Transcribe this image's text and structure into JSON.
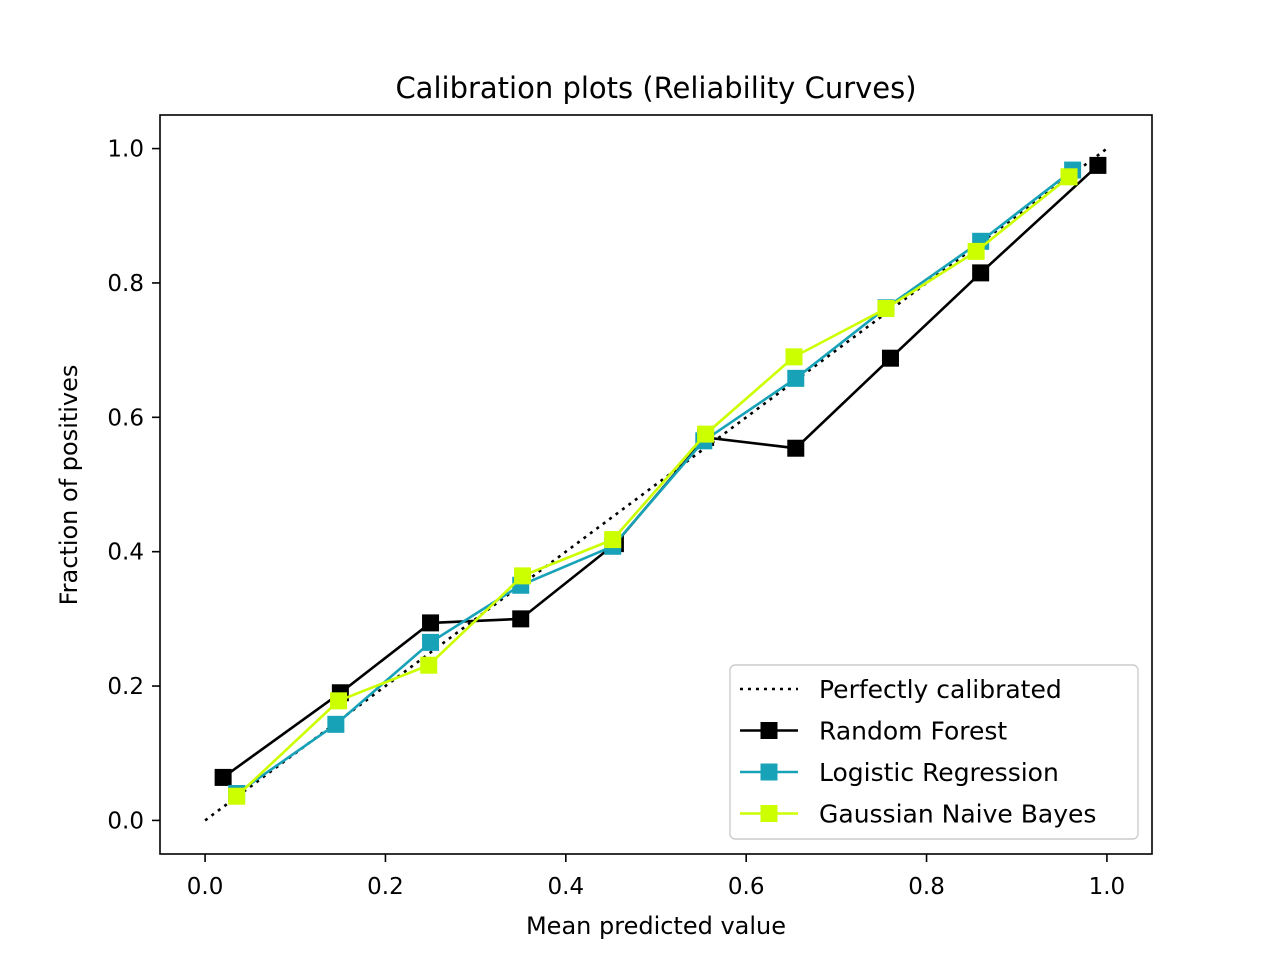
{
  "chart_data": {
    "type": "line",
    "title": "Calibration plots (Reliability Curves)",
    "xlabel": "Mean predicted value",
    "ylabel": "Fraction of positives",
    "xlim": [
      -0.05,
      1.05
    ],
    "ylim": [
      -0.05,
      1.05
    ],
    "xticks": [
      "0.0",
      "0.2",
      "0.4",
      "0.6",
      "0.8",
      "1.0"
    ],
    "yticks": [
      "0.0",
      "0.2",
      "0.4",
      "0.6",
      "0.8",
      "1.0"
    ],
    "xtick_values": [
      0.0,
      0.2,
      0.4,
      0.6,
      0.8,
      1.0
    ],
    "ytick_values": [
      0.0,
      0.2,
      0.4,
      0.6,
      0.8,
      1.0
    ],
    "grid": false,
    "legend_position": "lower-right",
    "series": [
      {
        "name": "Perfectly calibrated",
        "color": "#000000",
        "style": "dotted",
        "marker": "none",
        "x": [
          0.0,
          1.0
        ],
        "y": [
          0.0,
          1.0
        ]
      },
      {
        "name": "Random Forest",
        "color": "#000000",
        "style": "solid",
        "marker": "square",
        "x": [
          0.02,
          0.15,
          0.25,
          0.35,
          0.455,
          0.555,
          0.655,
          0.76,
          0.86,
          0.99
        ],
        "y": [
          0.064,
          0.19,
          0.294,
          0.3,
          0.412,
          0.57,
          0.554,
          0.688,
          0.815,
          0.975
        ]
      },
      {
        "name": "Logistic Regression",
        "color": "#17a2b8",
        "style": "solid",
        "marker": "square",
        "x": [
          0.035,
          0.145,
          0.25,
          0.35,
          0.452,
          0.553,
          0.655,
          0.755,
          0.86,
          0.962
        ],
        "y": [
          0.04,
          0.143,
          0.265,
          0.35,
          0.408,
          0.565,
          0.658,
          0.763,
          0.862,
          0.968
        ]
      },
      {
        "name": "Gaussian Naive Bayes",
        "color": "#ccff00",
        "style": "solid",
        "marker": "square",
        "x": [
          0.035,
          0.148,
          0.248,
          0.352,
          0.452,
          0.555,
          0.653,
          0.755,
          0.855,
          0.958
        ],
        "y": [
          0.036,
          0.178,
          0.231,
          0.364,
          0.418,
          0.575,
          0.69,
          0.762,
          0.847,
          0.958
        ]
      }
    ]
  }
}
